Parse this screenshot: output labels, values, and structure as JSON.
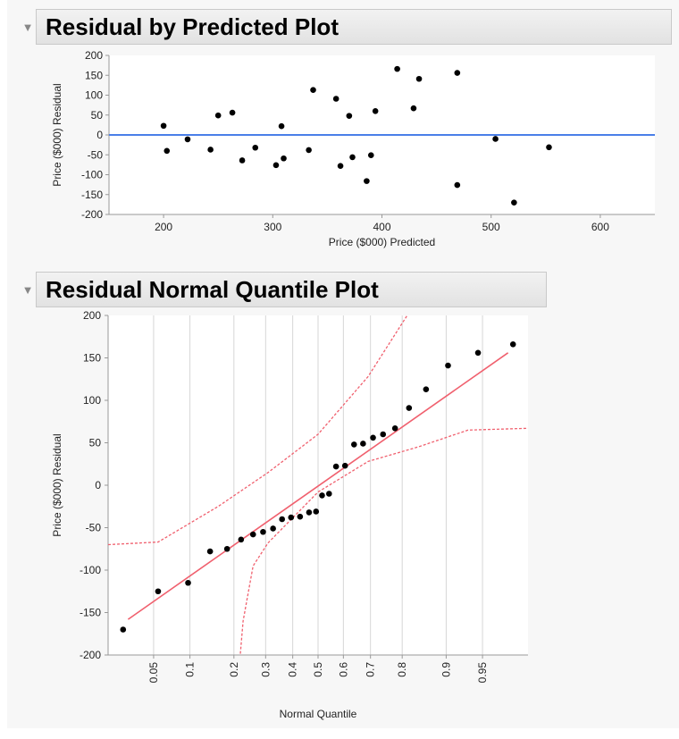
{
  "panel1": {
    "title": "Residual by Predicted Plot",
    "disclosure_icon": "triangle-down-icon"
  },
  "panel2": {
    "title": "Residual Normal Quantile Plot",
    "disclosure_icon": "triangle-down-icon"
  },
  "colors": {
    "zero_line": "#4a7fe8",
    "fit_line": "#f0606e",
    "confidence_band": "#f0606e",
    "points": "#000000"
  },
  "chart_data": [
    {
      "type": "scatter",
      "title": "Residual by Predicted Plot",
      "xlabel": "Price ($000) Predicted",
      "ylabel": "Price ($000) Residual",
      "xlim": [
        150,
        650
      ],
      "ylim": [
        -200,
        200
      ],
      "xticks": [
        200,
        300,
        400,
        500,
        600
      ],
      "yticks": [
        200,
        150,
        100,
        50,
        0,
        -50,
        -100,
        -150,
        -200
      ],
      "reference_line": {
        "y": 0
      },
      "x": [
        200,
        203,
        222,
        243,
        250,
        263,
        272,
        284,
        303,
        308,
        310,
        333,
        337,
        358,
        362,
        370,
        373,
        386,
        390,
        394,
        414,
        429,
        434,
        469,
        469,
        504,
        521,
        553
      ],
      "y": [
        23,
        -40,
        -11,
        -37,
        49,
        56,
        -64,
        -32,
        -76,
        22,
        -59,
        -38,
        113,
        91,
        -78,
        48,
        -56,
        -116,
        -51,
        60,
        166,
        67,
        141,
        156,
        -126,
        -10,
        -170,
        -31
      ]
    },
    {
      "type": "scatter",
      "title": "Residual Normal Quantile Plot",
      "xlabel": "Normal Quantile",
      "ylabel": "Price ($000) Residual",
      "ylim": [
        -200,
        200
      ],
      "yticks": [
        200,
        150,
        100,
        50,
        0,
        -50,
        -100,
        -150,
        -200
      ],
      "xtick_labels": [
        "0.05",
        "0.1",
        "0.2",
        "0.3",
        "0.4",
        "0.5",
        "0.6",
        "0.7",
        "0.8",
        "0.9",
        "0.95"
      ],
      "xtick_probabilities": [
        0.05,
        0.1,
        0.2,
        0.3,
        0.4,
        0.5,
        0.6,
        0.7,
        0.8,
        0.9,
        0.95
      ],
      "grid_x": true,
      "fit_line": {
        "x": [
          -1.9,
          1.9
        ],
        "y": [
          -158,
          156
        ]
      },
      "confidence_band": {
        "upper": {
          "x": [
            -2.1,
            -1.6,
            -1.0,
            -0.5,
            0,
            0.5,
            1.0,
            1.25,
            1.4
          ],
          "y": [
            -70,
            -67,
            -25,
            15,
            60,
            128,
            220,
            290,
            330
          ]
        },
        "lower": {
          "x": [
            -0.8,
            -0.75,
            -0.65,
            -0.5,
            0,
            0.5,
            1.0,
            1.5,
            2.1
          ],
          "y": [
            -230,
            -160,
            -95,
            -68,
            -8,
            28,
            45,
            65,
            67
          ]
        }
      },
      "points_quantile": [
        -1.95,
        -1.6,
        -1.3,
        -1.08,
        -0.91,
        -0.77,
        -0.65,
        -0.55,
        -0.45,
        -0.36,
        -0.27,
        -0.18,
        -0.09,
        -0.02,
        0.04,
        0.11,
        0.18,
        0.27,
        0.36,
        0.45,
        0.55,
        0.65,
        0.77,
        0.91,
        1.08,
        1.3,
        1.6,
        1.95
      ],
      "points_residual": [
        -170,
        -125,
        -115,
        -78,
        -75,
        -64,
        -58,
        -55,
        -51,
        -40,
        -38,
        -37,
        -32,
        -31,
        -12,
        -10,
        22,
        23,
        48,
        49,
        56,
        60,
        67,
        91,
        113,
        141,
        156,
        166
      ]
    }
  ]
}
